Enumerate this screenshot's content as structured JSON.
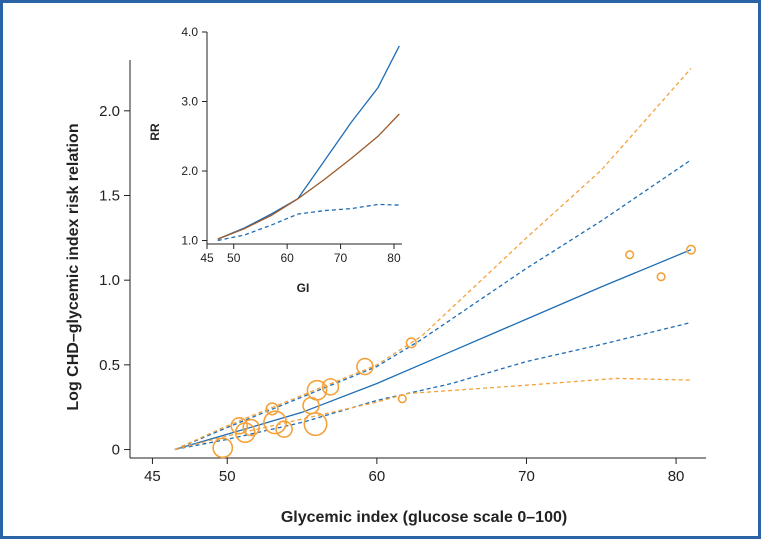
{
  "chart_data": [
    {
      "type": "scatter",
      "xlabel": "Glycemic index (glucose scale 0–100)",
      "ylabel": "Log CHD–glycemic index risk relation",
      "xlim": [
        43.5,
        82
      ],
      "ylim": [
        -0.05,
        2.3
      ],
      "xticks": [
        45,
        50,
        60,
        70,
        80
      ],
      "yticks": [
        0,
        0.5,
        1.0,
        1.5,
        2.0
      ],
      "ytick_labels": [
        "0",
        "0.5",
        "1.0",
        "1.5",
        "2.0"
      ],
      "series": [
        {
          "role": "fit",
          "color": "#1f6db5",
          "dash": "none",
          "points": [
            [
              46.5,
              0
            ],
            [
              50,
              0.09
            ],
            [
              55,
              0.22
            ],
            [
              60,
              0.39
            ],
            [
              65,
              0.58
            ],
            [
              70,
              0.77
            ],
            [
              75,
              0.96
            ],
            [
              81,
              1.18
            ]
          ]
        },
        {
          "role": "ci-upper",
          "color": "#1f6db5",
          "dash": "dashed",
          "points": [
            [
              46.5,
              0
            ],
            [
              50,
              0.13
            ],
            [
              55,
              0.31
            ],
            [
              60,
              0.49
            ],
            [
              63,
              0.65
            ],
            [
              70,
              1.07
            ],
            [
              75,
              1.35
            ],
            [
              81,
              1.71
            ]
          ]
        },
        {
          "role": "ci-lower",
          "color": "#1f6db5",
          "dash": "dashed",
          "points": [
            [
              46.5,
              0
            ],
            [
              50,
              0.06
            ],
            [
              55,
              0.16
            ],
            [
              60,
              0.29
            ],
            [
              65,
              0.39
            ],
            [
              70,
              0.52
            ],
            [
              75,
              0.62
            ],
            [
              81,
              0.75
            ]
          ]
        },
        {
          "role": "outer-upper",
          "color": "#f3a23c",
          "dash": "dashed",
          "points": [
            [
              46.5,
              0
            ],
            [
              50,
              0.14
            ],
            [
              55,
              0.32
            ],
            [
              60,
              0.5
            ],
            [
              63,
              0.67
            ],
            [
              70,
              1.25
            ],
            [
              75,
              1.65
            ],
            [
              81,
              2.25
            ]
          ]
        },
        {
          "role": "outer-lower",
          "color": "#f3a23c",
          "dash": "dashed",
          "points": [
            [
              46.5,
              0
            ],
            [
              50,
              0.08
            ],
            [
              55,
              0.18
            ],
            [
              60,
              0.28
            ],
            [
              62,
              0.33
            ],
            [
              70,
              0.38
            ],
            [
              76,
              0.42
            ],
            [
              81,
              0.41
            ]
          ]
        }
      ],
      "scatter": {
        "color": "#f3a23c",
        "points": [
          {
            "x": 49.7,
            "y": 0.01,
            "size": 3
          },
          {
            "x": 50.8,
            "y": 0.14,
            "size": 2.5
          },
          {
            "x": 51.2,
            "y": 0.1,
            "size": 3
          },
          {
            "x": 51.6,
            "y": 0.13,
            "size": 2.5
          },
          {
            "x": 53.0,
            "y": 0.24,
            "size": 1.8
          },
          {
            "x": 53.2,
            "y": 0.16,
            "size": 3.5
          },
          {
            "x": 53.8,
            "y": 0.12,
            "size": 2.5
          },
          {
            "x": 55.6,
            "y": 0.26,
            "size": 2.5
          },
          {
            "x": 55.9,
            "y": 0.15,
            "size": 3.5
          },
          {
            "x": 56.0,
            "y": 0.35,
            "size": 3
          },
          {
            "x": 56.9,
            "y": 0.37,
            "size": 2.5
          },
          {
            "x": 59.2,
            "y": 0.49,
            "size": 2.5
          },
          {
            "x": 61.7,
            "y": 0.3,
            "size": 1.2
          },
          {
            "x": 62.3,
            "y": 0.63,
            "size": 1.5
          },
          {
            "x": 76.9,
            "y": 1.15,
            "size": 1.2
          },
          {
            "x": 79.0,
            "y": 1.02,
            "size": 1.2
          },
          {
            "x": 81.0,
            "y": 1.18,
            "size": 1.3
          }
        ]
      }
    },
    {
      "type": "line",
      "xlabel": "GI",
      "ylabel": "RR",
      "xlim": [
        45,
        81.5
      ],
      "ylim": [
        0.95,
        4.0
      ],
      "xticks": [
        45,
        50,
        60,
        70,
        80
      ],
      "yticks": [
        1.0,
        2.0,
        3.0,
        4.0
      ],
      "ytick_labels": [
        "1.0",
        "2.0",
        "3.0",
        "4.0"
      ],
      "series": [
        {
          "role": "upper",
          "color": "#1f6db5",
          "dash": "none",
          "points": [
            [
              47,
              1.02
            ],
            [
              52,
              1.18
            ],
            [
              57,
              1.38
            ],
            [
              62,
              1.6
            ],
            [
              67,
              2.15
            ],
            [
              72,
              2.7
            ],
            [
              77,
              3.2
            ],
            [
              81,
              3.8
            ]
          ]
        },
        {
          "role": "central",
          "color": "#9b5a2c",
          "dash": "none",
          "points": [
            [
              47,
              1.02
            ],
            [
              52,
              1.17
            ],
            [
              57,
              1.36
            ],
            [
              62,
              1.6
            ],
            [
              67,
              1.88
            ],
            [
              72,
              2.18
            ],
            [
              77,
              2.5
            ],
            [
              81,
              2.82
            ]
          ]
        },
        {
          "role": "lower",
          "color": "#1f6db5",
          "dash": "dashed",
          "points": [
            [
              47,
              1.0
            ],
            [
              52,
              1.08
            ],
            [
              57,
              1.22
            ],
            [
              62,
              1.38
            ],
            [
              67,
              1.43
            ],
            [
              72,
              1.46
            ],
            [
              77,
              1.52
            ],
            [
              81,
              1.51
            ]
          ]
        }
      ]
    }
  ]
}
